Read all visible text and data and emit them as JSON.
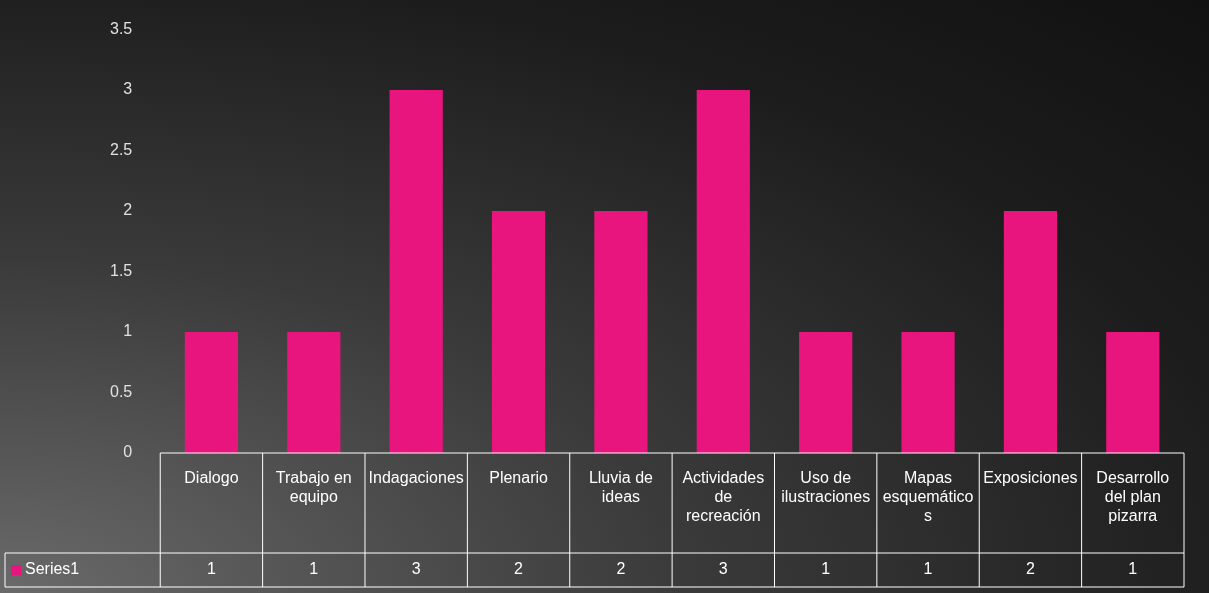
{
  "chart_data": {
    "type": "bar",
    "categories": [
      "Dialogo",
      "Trabajo en equipo",
      "Indagaciones",
      "Plenario",
      "Lluvia de ideas",
      "Actividades de recreación",
      "Uso de ilustraciones",
      "Mapas esquemáticos",
      "Exposiciones",
      "Desarrollo del plan pizarra"
    ],
    "series": [
      {
        "name": "Series1",
        "color": "#e8157f",
        "values": [
          1,
          1,
          3,
          2,
          2,
          3,
          1,
          1,
          2,
          1
        ]
      }
    ],
    "ylim": [
      0,
      3.5
    ],
    "yticks": [
      0,
      0.5,
      1,
      1.5,
      2,
      2.5,
      3,
      3.5
    ],
    "grid": false,
    "data_labels": true,
    "legend": "bottom left"
  }
}
